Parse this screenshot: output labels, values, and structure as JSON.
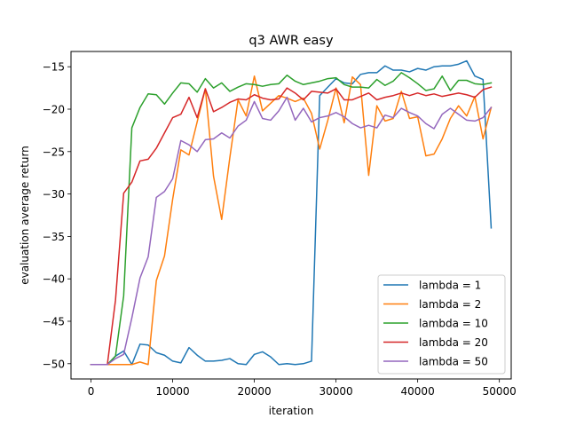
{
  "chart_data": {
    "type": "line",
    "title": "q3 AWR easy",
    "xlabel": "iteration",
    "ylabel": "evaluation average return",
    "xlim": [
      -2450,
      51450
    ],
    "ylim": [
      -51.8,
      -13.2
    ],
    "xticks": [
      0,
      10000,
      20000,
      30000,
      40000,
      50000
    ],
    "xtick_labels": [
      "0",
      "10000",
      "20000",
      "30000",
      "40000",
      "50000"
    ],
    "yticks": [
      -50,
      -45,
      -40,
      -35,
      -30,
      -25,
      -20,
      -15
    ],
    "ytick_labels": [
      "−50",
      "−45",
      "−40",
      "−35",
      "−30",
      "−25",
      "−20",
      "−15"
    ],
    "grid": false,
    "legend_position": "lower right",
    "x": [
      0,
      1000,
      2000,
      3000,
      4000,
      5000,
      6000,
      7000,
      8000,
      9000,
      10000,
      11000,
      12000,
      13000,
      14000,
      15000,
      16000,
      17000,
      18000,
      19000,
      20000,
      21000,
      22000,
      23000,
      24000,
      25000,
      26000,
      27000,
      28000,
      29000,
      30000,
      31000,
      32000,
      33000,
      34000,
      35000,
      36000,
      37000,
      38000,
      39000,
      40000,
      41000,
      42000,
      43000,
      44000,
      45000,
      46000,
      47000,
      48000,
      49000
    ],
    "series": [
      {
        "name": "lambda = 1",
        "color": "#1f77b4",
        "values": [
          -50.1,
          -50.1,
          -50.1,
          -49.1,
          -48.5,
          -50.1,
          -47.7,
          -47.8,
          -48.7,
          -49.0,
          -49.7,
          -49.9,
          -48.1,
          -49.0,
          -49.7,
          -49.7,
          -49.6,
          -49.4,
          -50.0,
          -50.1,
          -48.9,
          -48.6,
          -49.2,
          -50.1,
          -50.0,
          -50.1,
          -50.0,
          -49.7,
          -18.4,
          -17.4,
          -16.4,
          -16.9,
          -17.0,
          -15.9,
          -15.7,
          -15.7,
          -14.9,
          -15.4,
          -15.4,
          -15.6,
          -15.2,
          -15.4,
          -15.0,
          -14.9,
          -14.9,
          -14.7,
          -14.3,
          -16.1,
          -16.5,
          -34.0
        ]
      },
      {
        "name": "lambda = 2",
        "color": "#ff7f0e",
        "values": [
          -50.1,
          -50.1,
          -50.1,
          -50.1,
          -50.1,
          -50.1,
          -49.8,
          -50.1,
          -40.2,
          -37.3,
          -30.6,
          -24.8,
          -25.4,
          -21.5,
          -17.6,
          -27.9,
          -33.0,
          -25.7,
          -18.9,
          -20.8,
          -16.1,
          -20.2,
          -19.3,
          -18.4,
          -18.7,
          -19.1,
          -18.7,
          -20.5,
          -24.7,
          -21.3,
          -17.5,
          -21.6,
          -16.2,
          -17.1,
          -27.8,
          -19.6,
          -21.4,
          -21.1,
          -17.9,
          -21.1,
          -20.9,
          -25.5,
          -25.3,
          -23.5,
          -21.1,
          -19.6,
          -20.8,
          -18.5,
          -23.5,
          -19.8
        ]
      },
      {
        "name": "lambda = 10",
        "color": "#2ca02c",
        "values": [
          -50.1,
          -50.1,
          -50.1,
          -49.1,
          -42.0,
          -22.2,
          -19.8,
          -18.2,
          -18.3,
          -19.4,
          -18.1,
          -16.9,
          -17.0,
          -18.0,
          -16.4,
          -17.5,
          -16.9,
          -17.9,
          -17.4,
          -17.0,
          -17.1,
          -17.3,
          -17.1,
          -17.0,
          -16.0,
          -16.7,
          -17.1,
          -16.9,
          -16.7,
          -16.4,
          -16.3,
          -17.1,
          -17.4,
          -17.4,
          -17.5,
          -16.5,
          -17.2,
          -16.7,
          -15.7,
          -16.3,
          -17.0,
          -17.8,
          -17.6,
          -16.1,
          -17.8,
          -16.6,
          -16.6,
          -17.0,
          -17.1,
          -16.9
        ]
      },
      {
        "name": "lambda = 20",
        "color": "#d62728",
        "values": [
          -50.1,
          -50.1,
          -50.1,
          -42.5,
          -29.9,
          -28.6,
          -26.1,
          -25.9,
          -24.6,
          -22.8,
          -21.0,
          -20.6,
          -18.6,
          -21.0,
          -17.6,
          -20.3,
          -19.8,
          -19.2,
          -18.8,
          -18.9,
          -18.3,
          -18.7,
          -18.9,
          -18.8,
          -17.5,
          -18.1,
          -18.9,
          -17.9,
          -18.0,
          -18.1,
          -17.6,
          -18.9,
          -18.9,
          -18.5,
          -18.1,
          -18.9,
          -18.6,
          -18.4,
          -18.1,
          -18.4,
          -18.1,
          -18.4,
          -18.2,
          -18.5,
          -18.3,
          -18.1,
          -18.3,
          -18.6,
          -17.7,
          -17.4
        ]
      },
      {
        "name": "lambda = 50",
        "color": "#9467bd",
        "values": [
          -50.1,
          -50.1,
          -50.1,
          -49.4,
          -48.9,
          -44.6,
          -39.9,
          -37.4,
          -30.4,
          -29.7,
          -28.2,
          -23.7,
          -24.2,
          -25.0,
          -23.6,
          -23.5,
          -22.8,
          -23.4,
          -22.0,
          -21.3,
          -19.1,
          -21.1,
          -21.3,
          -20.2,
          -18.6,
          -21.3,
          -19.9,
          -21.5,
          -21.0,
          -20.8,
          -20.4,
          -20.9,
          -21.7,
          -22.2,
          -21.9,
          -22.2,
          -20.7,
          -21.0,
          -19.9,
          -20.4,
          -20.8,
          -21.7,
          -22.3,
          -20.6,
          -19.9,
          -20.6,
          -21.3,
          -21.4,
          -21.0,
          -19.8
        ]
      }
    ]
  }
}
